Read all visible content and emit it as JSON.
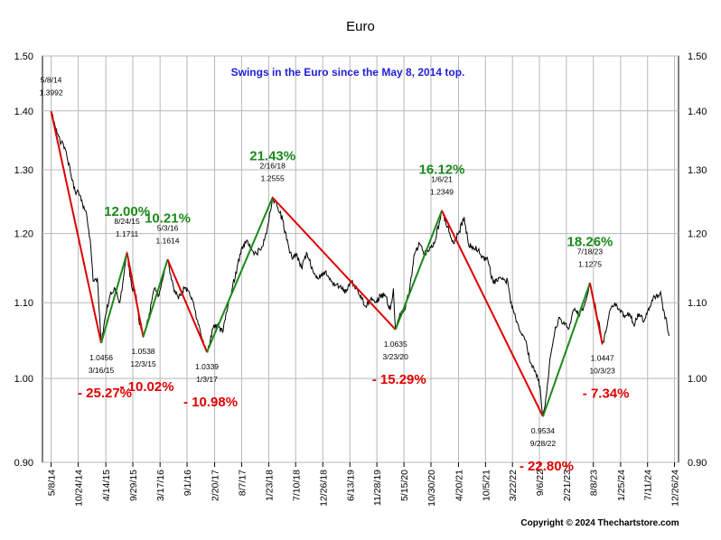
{
  "chart_data": {
    "type": "line",
    "title": "Euro",
    "subtitle": "Swings in the Euro since the May 8, 2014 top.",
    "copyright": "Copyright © 2024 Thechartstore.com",
    "y_scale": "log",
    "ylim": [
      0.9,
      1.5
    ],
    "y_ticks": [
      "0.90",
      "1.00",
      "1.10",
      "1.20",
      "1.30",
      "1.40",
      "1.50"
    ],
    "y_tick_values": [
      0.9,
      1.0,
      1.1,
      1.2,
      1.3,
      1.4,
      1.5
    ],
    "x_ticks": [
      "5/8/14",
      "10/24/14",
      "4/14/15",
      "9/29/15",
      "3/17/16",
      "9/1/16",
      "2/20/17",
      "8/7/17",
      "1/23/18",
      "7/10/18",
      "12/26/18",
      "6/13/19",
      "11/28/19",
      "5/15/20",
      "10/30/20",
      "4/20/21",
      "10/5/21",
      "3/22/22",
      "9/6/22",
      "2/21/23",
      "8/8/23",
      "1/25/24",
      "7/11/24",
      "12/26/24"
    ],
    "xlim": [
      "2014-03-15",
      "2025-01-20"
    ],
    "grid": true,
    "series": [
      {
        "color": "#000000",
        "x": [
          "2014-05-08",
          "2014-06-15",
          "2014-07-10",
          "2014-08-10",
          "2014-09-10",
          "2014-10-05",
          "2014-10-25",
          "2014-11-20",
          "2014-12-15",
          "2015-01-10",
          "2015-01-25",
          "2015-02-20",
          "2015-03-16",
          "2015-04-10",
          "2015-05-10",
          "2015-06-10",
          "2015-07-10",
          "2015-08-24",
          "2015-09-20",
          "2015-10-20",
          "2015-11-10",
          "2015-12-03",
          "2016-01-10",
          "2016-02-10",
          "2016-03-10",
          "2016-04-10",
          "2016-05-03",
          "2016-06-10",
          "2016-07-10",
          "2016-08-15",
          "2016-09-15",
          "2016-10-15",
          "2016-11-10",
          "2016-12-05",
          "2017-01-03",
          "2017-02-10",
          "2017-03-10",
          "2017-04-10",
          "2017-05-10",
          "2017-06-10",
          "2017-07-10",
          "2017-08-10",
          "2017-09-10",
          "2017-10-10",
          "2017-11-10",
          "2017-12-10",
          "2018-01-10",
          "2018-02-16",
          "2018-03-20",
          "2018-04-20",
          "2018-05-15",
          "2018-06-15",
          "2018-07-15",
          "2018-08-15",
          "2018-09-20",
          "2018-10-20",
          "2018-11-15",
          "2018-12-15",
          "2019-01-15",
          "2019-02-15",
          "2019-03-20",
          "2019-04-20",
          "2019-05-20",
          "2019-06-20",
          "2019-07-20",
          "2019-08-20",
          "2019-09-20",
          "2019-10-20",
          "2019-11-20",
          "2019-12-20",
          "2020-01-20",
          "2020-02-20",
          "2020-03-10",
          "2020-03-23",
          "2020-04-20",
          "2020-05-20",
          "2020-06-20",
          "2020-07-20",
          "2020-08-20",
          "2020-09-20",
          "2020-10-20",
          "2020-11-20",
          "2020-12-20",
          "2021-01-06",
          "2021-02-10",
          "2021-03-20",
          "2021-04-20",
          "2021-05-25",
          "2021-06-20",
          "2021-07-20",
          "2021-08-20",
          "2021-09-20",
          "2021-10-20",
          "2021-11-20",
          "2021-12-20",
          "2022-01-20",
          "2022-02-20",
          "2022-03-10",
          "2022-04-10",
          "2022-05-10",
          "2022-06-10",
          "2022-07-10",
          "2022-08-10",
          "2022-09-10",
          "2022-09-28",
          "2022-10-20",
          "2022-11-15",
          "2022-12-10",
          "2023-01-10",
          "2023-02-10",
          "2023-03-10",
          "2023-04-10",
          "2023-05-10",
          "2023-06-10",
          "2023-07-18",
          "2023-08-15",
          "2023-09-10",
          "2023-10-03",
          "2023-10-25",
          "2023-11-20",
          "2023-12-20",
          "2024-01-20",
          "2024-02-20",
          "2024-03-20",
          "2024-04-15",
          "2024-05-20",
          "2024-06-20",
          "2024-07-20",
          "2024-08-20",
          "2024-09-15",
          "2024-09-30",
          "2024-10-15",
          "2024-11-01",
          "2024-11-15",
          "2024-11-22"
        ],
        "y": [
          1.3992,
          1.36,
          1.345,
          1.33,
          1.29,
          1.265,
          1.265,
          1.245,
          1.23,
          1.18,
          1.13,
          1.135,
          1.0456,
          1.08,
          1.11,
          1.12,
          1.1,
          1.1711,
          1.125,
          1.11,
          1.07,
          1.0538,
          1.085,
          1.12,
          1.11,
          1.14,
          1.1614,
          1.12,
          1.105,
          1.12,
          1.115,
          1.095,
          1.07,
          1.05,
          1.0339,
          1.065,
          1.07,
          1.06,
          1.09,
          1.12,
          1.15,
          1.18,
          1.19,
          1.175,
          1.17,
          1.18,
          1.2,
          1.2555,
          1.24,
          1.22,
          1.19,
          1.165,
          1.17,
          1.15,
          1.17,
          1.15,
          1.135,
          1.14,
          1.145,
          1.13,
          1.125,
          1.12,
          1.115,
          1.13,
          1.12,
          1.11,
          1.095,
          1.105,
          1.1,
          1.11,
          1.11,
          1.09,
          1.12,
          1.0635,
          1.085,
          1.09,
          1.12,
          1.17,
          1.185,
          1.17,
          1.175,
          1.185,
          1.215,
          1.2349,
          1.21,
          1.185,
          1.2,
          1.225,
          1.185,
          1.18,
          1.175,
          1.165,
          1.16,
          1.13,
          1.13,
          1.135,
          1.13,
          1.1,
          1.08,
          1.06,
          1.05,
          1.02,
          1.01,
          0.99,
          0.9534,
          0.98,
          1.03,
          1.06,
          1.08,
          1.07,
          1.065,
          1.09,
          1.085,
          1.095,
          1.1275,
          1.1,
          1.075,
          1.0447,
          1.06,
          1.09,
          1.1,
          1.09,
          1.08,
          1.085,
          1.07,
          1.085,
          1.075,
          1.09,
          1.11,
          1.11,
          1.115,
          1.09,
          1.08,
          1.06,
          1.055
        ]
      }
    ],
    "swings": {
      "color_up": "#1a8a1a",
      "color_down": "#e00000",
      "points": [
        {
          "x": "2014-05-08",
          "y": 1.3992
        },
        {
          "x": "2015-03-16",
          "y": 1.0456
        },
        {
          "x": "2015-08-24",
          "y": 1.1711
        },
        {
          "x": "2015-12-03",
          "y": 1.0538
        },
        {
          "x": "2016-05-03",
          "y": 1.1614
        },
        {
          "x": "2017-01-03",
          "y": 1.0339
        },
        {
          "x": "2018-02-16",
          "y": 1.2555
        },
        {
          "x": "2020-03-23",
          "y": 1.0635
        },
        {
          "x": "2021-01-06",
          "y": 1.2349
        },
        {
          "x": "2022-09-28",
          "y": 0.9534
        },
        {
          "x": "2023-07-18",
          "y": 1.1275
        },
        {
          "x": "2023-10-03",
          "y": 1.0447
        }
      ]
    },
    "point_labels": [
      {
        "date": "5/8/14",
        "value": "1.3992"
      },
      {
        "date": "3/16/15",
        "value": "1.0456"
      },
      {
        "date": "8/24/15",
        "value": "1.1711"
      },
      {
        "date": "12/3/15",
        "value": "1.0538"
      },
      {
        "date": "5/3/16",
        "value": "1.1614"
      },
      {
        "date": "1/3/17",
        "value": "1.0339"
      },
      {
        "date": "2/16/18",
        "value": "1.2555"
      },
      {
        "date": "3/23/20",
        "value": "1.0635"
      },
      {
        "date": "1/6/21",
        "value": "1.2349"
      },
      {
        "date": "9/28/22",
        "value": "0.9534"
      },
      {
        "date": "7/18/23",
        "value": "1.1275"
      },
      {
        "date": "10/3/23",
        "value": "1.0447"
      }
    ],
    "percent_labels": [
      {
        "text": "- 25.27%",
        "direction": "down"
      },
      {
        "text": "12.00%",
        "direction": "up"
      },
      {
        "text": "- 10.02%",
        "direction": "down"
      },
      {
        "text": "10.21%",
        "direction": "up"
      },
      {
        "text": "- 10.98%",
        "direction": "down"
      },
      {
        "text": "21.43%",
        "direction": "up"
      },
      {
        "text": "- 15.29%",
        "direction": "down"
      },
      {
        "text": "16.12%",
        "direction": "up"
      },
      {
        "text": "- 22.80%",
        "direction": "down"
      },
      {
        "text": "18.26%",
        "direction": "up"
      },
      {
        "text": "- 7.34%",
        "direction": "down"
      }
    ]
  }
}
